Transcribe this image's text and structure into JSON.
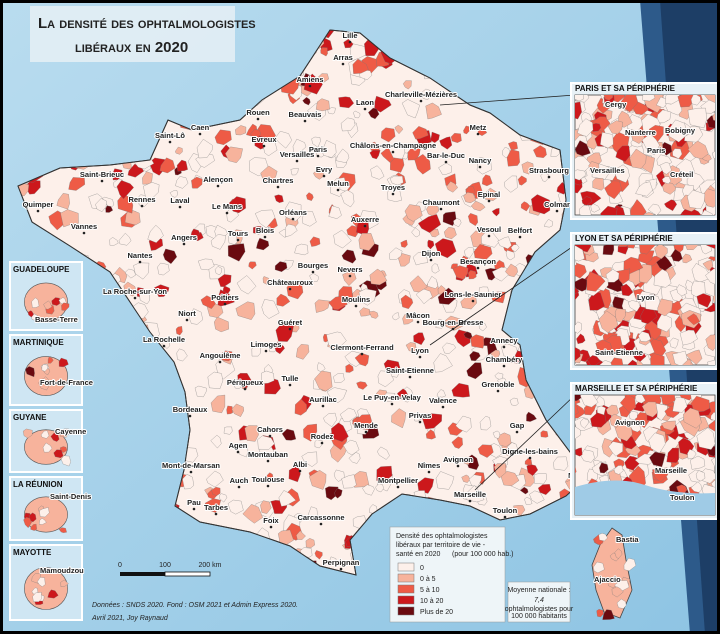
{
  "title": {
    "line1": "La densité des ophtalmologistes",
    "line2": "libéraux en 2020"
  },
  "cities": [
    "Lille",
    "Arras",
    "Amiens",
    "Charleville-Mézières",
    "Laon",
    "Rouen",
    "Beauvais",
    "Saint-Lô",
    "Caen",
    "Metz",
    "Châlons-en-Champagne",
    "Evreux",
    "Versailles",
    "Paris",
    "Bar-le-Duc",
    "Nancy",
    "Strasbourg",
    "Saint-Brieuc",
    "Alençon",
    "Evry",
    "Chartres",
    "Melun",
    "Troyes",
    "Epinal",
    "Colmar",
    "Quimper",
    "Rennes",
    "Laval",
    "Le Mans",
    "Chaumont",
    "Vannes",
    "Orléans",
    "Auxerre",
    "Vesoul",
    "Belfort",
    "Angers",
    "Tours",
    "Blois",
    "Nantes",
    "Dijon",
    "Besançon",
    "Bourges",
    "Nevers",
    "La Roche-sur-Yon",
    "Châteauroux",
    "Lons-le-Saunier",
    "Moulins",
    "Poitiers",
    "Niort",
    "Mâcon",
    "Bourg-en-Bresse",
    "Annecy",
    "Guéret",
    "La Rochelle",
    "Clermont-Ferrand",
    "Limoges",
    "Lyon",
    "Chambéry",
    "Angoulême",
    "Saint-Etienne",
    "Grenoble",
    "Tulle",
    "Périgueux",
    "Le Puy-en-Velay",
    "Valence",
    "Aurillac",
    "Bordeaux",
    "Privas",
    "Gap",
    "Cahors",
    "Rodez",
    "Mende",
    "Agen",
    "Digne-les-bains",
    "Montauban",
    "Albi",
    "Avignon",
    "Mont-de-Marsan",
    "Nîmes",
    "Auch",
    "Toulouse",
    "Montpellier",
    "Nice",
    "Marseille",
    "Pau",
    "Tarbes",
    "Toulon",
    "Carcassonne",
    "Foix",
    "Perpignan"
  ],
  "insets_left": [
    {
      "title": "Guadeloupe",
      "cities": [
        "Basse-Terre"
      ]
    },
    {
      "title": "Martinique",
      "cities": [
        "Fort-de-France"
      ]
    },
    {
      "title": "Guyane",
      "cities": [
        "Cayenne"
      ]
    },
    {
      "title": "La Réunion",
      "cities": [
        "Saint-Denis"
      ]
    },
    {
      "title": "Mayotte",
      "cities": [
        "Mamoudzou"
      ]
    }
  ],
  "insets_right": [
    {
      "title": "Paris et sa périphérie",
      "cities": [
        "Cergy",
        "Nanterre",
        "Bobigny",
        "Paris",
        "Versailles",
        "Créteil"
      ]
    },
    {
      "title": "Lyon et sa périphérie",
      "cities": [
        "Lyon",
        "Saint-Etienne"
      ]
    },
    {
      "title": "Marseille et sa périphérie",
      "cities": [
        "Avignon",
        "Marseille",
        "Toulon"
      ]
    }
  ],
  "corsica": {
    "cities": [
      "Bastia",
      "Ajaccio"
    ]
  },
  "legend": {
    "lines": [
      "Densité des ophtalmologistes",
      "libéraux par territoire de vie -",
      "santé en 2020"
    ],
    "unit": "(pour 100 000 hab.)",
    "items": [
      {
        "label": "0",
        "color": "#fdf0ea"
      },
      {
        "label": "0 à 5",
        "color": "#f7b39c"
      },
      {
        "label": "5 à 10",
        "color": "#ee5b46"
      },
      {
        "label": "10 à 20",
        "color": "#cc181c"
      },
      {
        "label": "Plus de 20",
        "color": "#6a0a10"
      }
    ]
  },
  "national_average": {
    "label": "Moyenne nationale :",
    "value": "7,4",
    "unit_line1": "ophtalmologistes pour",
    "unit_line2": "100 000 habitants"
  },
  "scale": {
    "labels": [
      "0",
      "100",
      "200 km"
    ]
  },
  "source": {
    "line1": "Données : SNDS 2020. Fond : OSM 2021 et Admin Express 2020.",
    "line2": "Avril 2021, Joy Raynaud"
  }
}
